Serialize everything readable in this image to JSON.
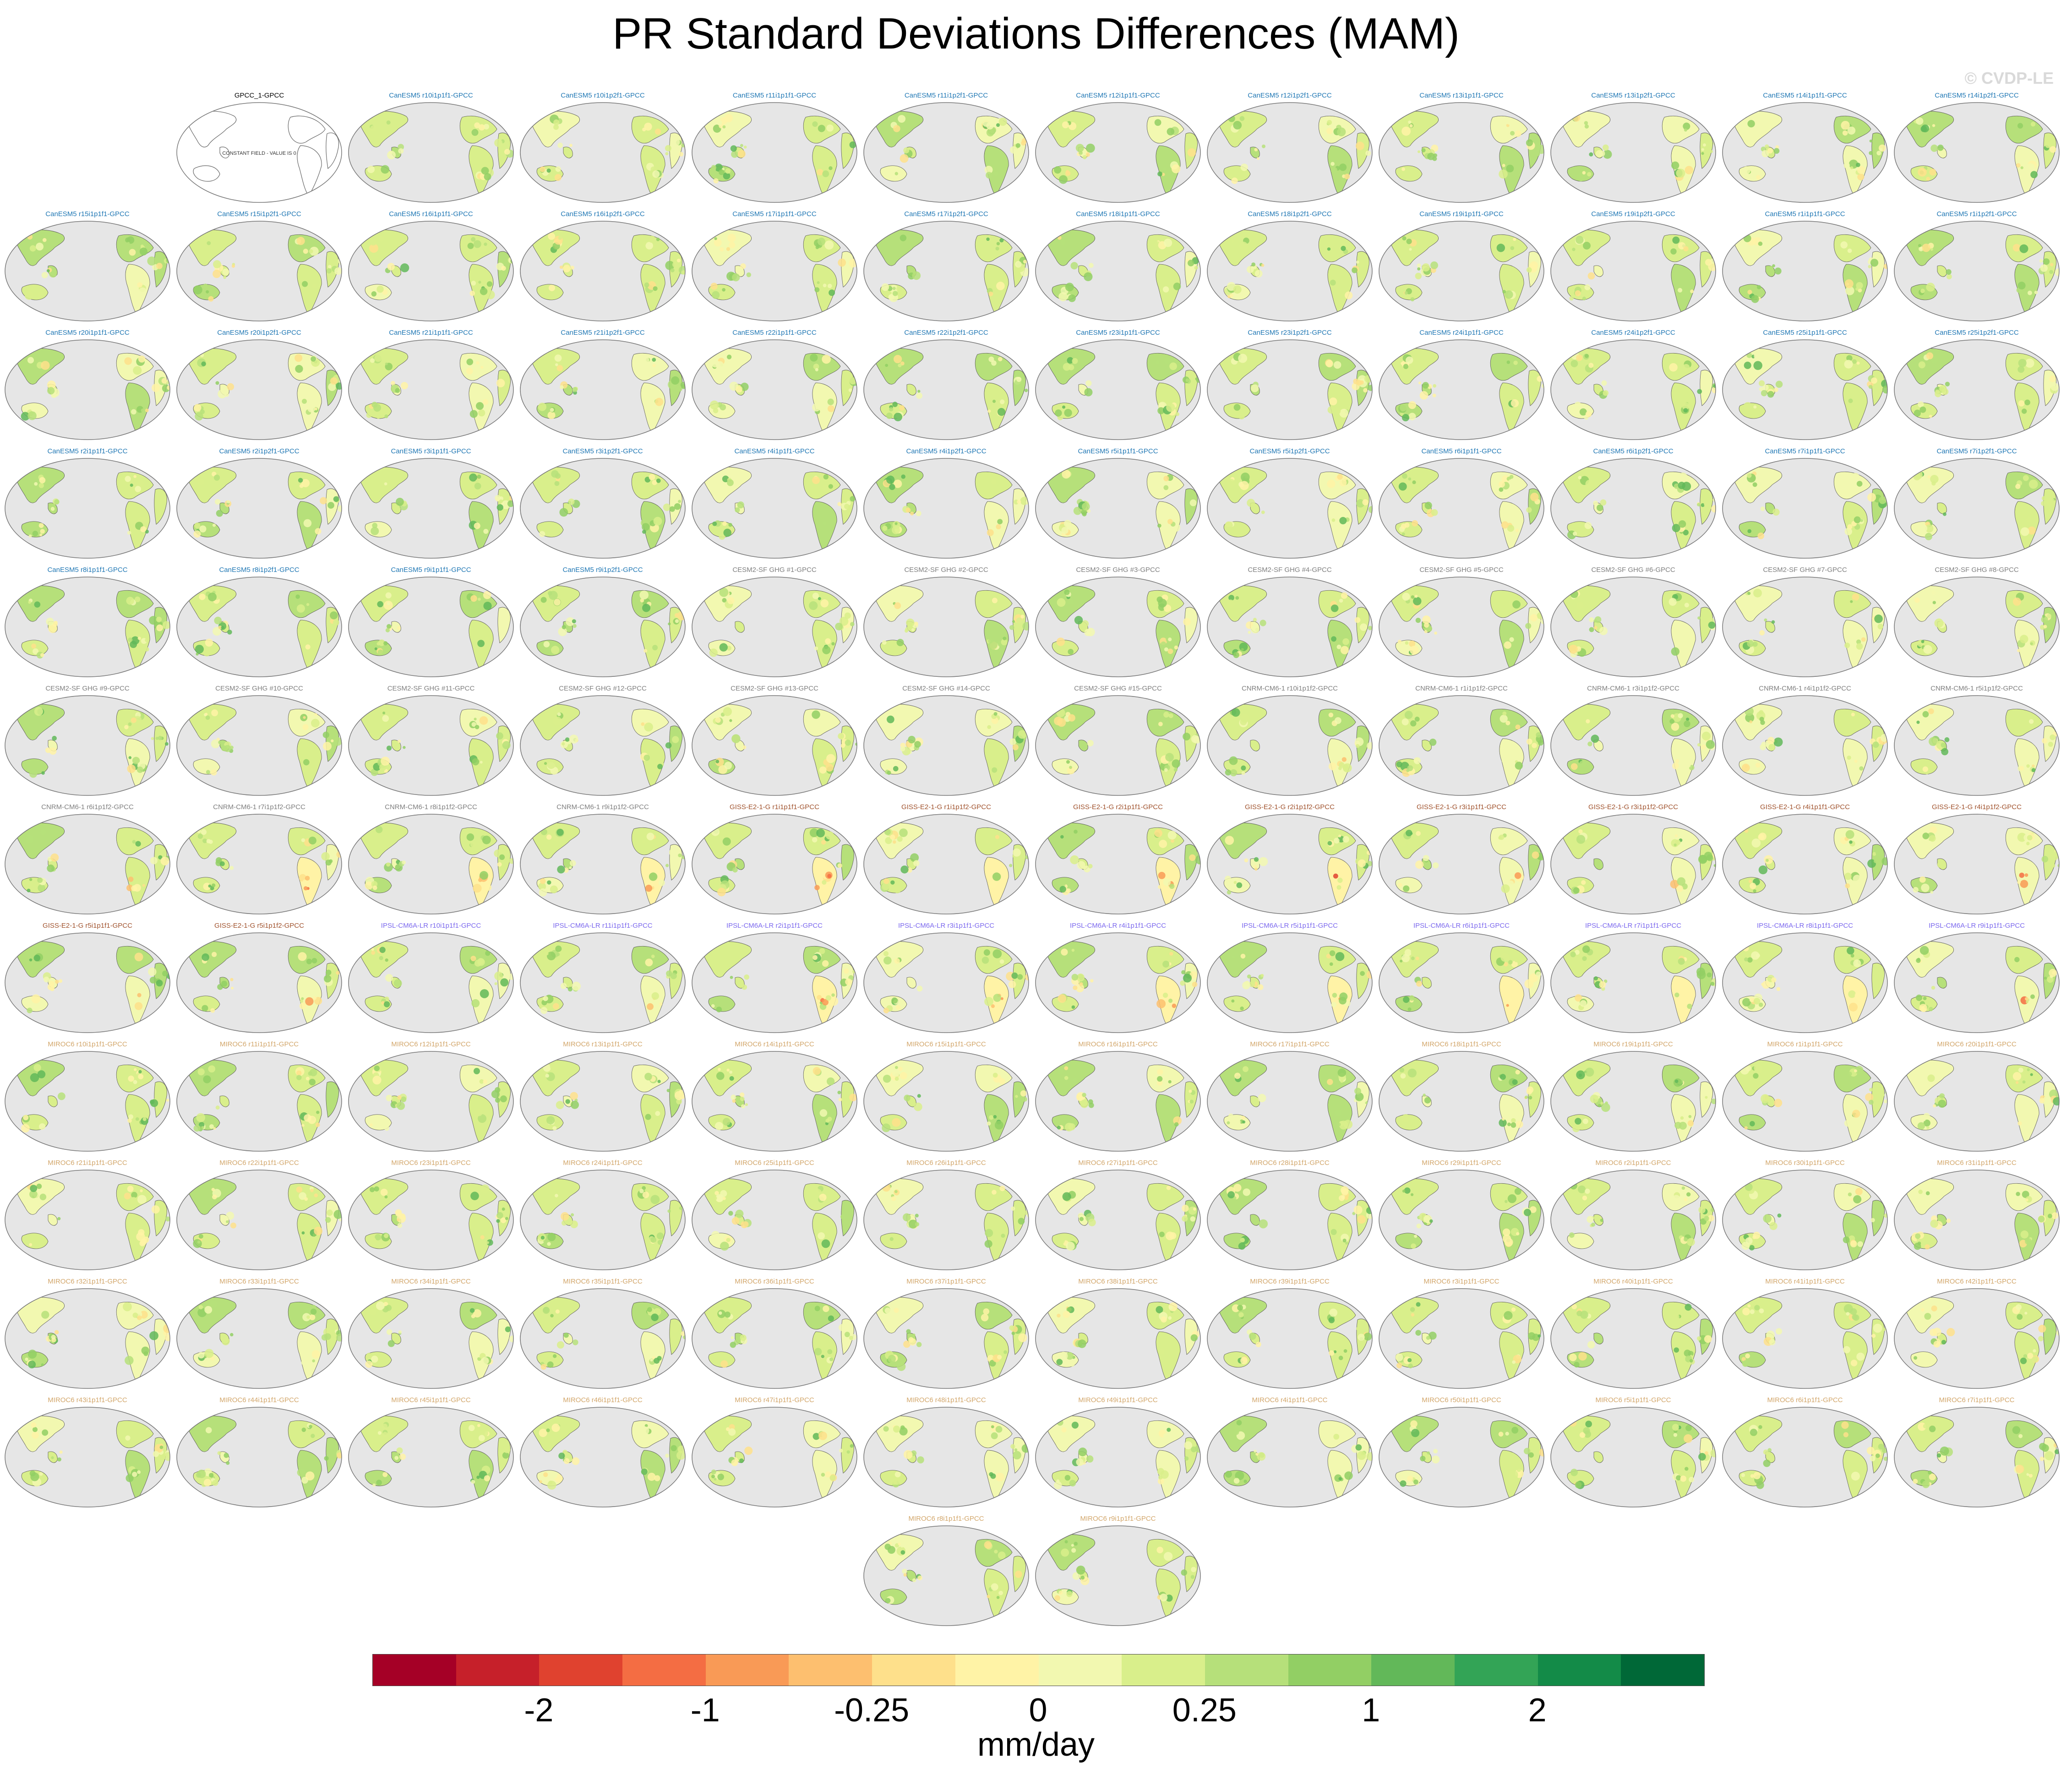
{
  "title": "PR Standard Deviations Differences (MAM)",
  "credit": "© CVDP-LE",
  "units": "mm/day",
  "colorbar": {
    "colors": [
      "#a50026",
      "#c6202a",
      "#e0422f",
      "#f46d43",
      "#f99a56",
      "#fdbf6f",
      "#fee08b",
      "#fff3a6",
      "#f2f8b0",
      "#d9ef8b",
      "#b6e07a",
      "#92cf64",
      "#62b859",
      "#33a456",
      "#138b48",
      "#006837"
    ],
    "ticks": [
      {
        "label": "-2",
        "edge": 2
      },
      {
        "label": "-1",
        "edge": 4
      },
      {
        "label": "-0.25",
        "edge": 6
      },
      {
        "label": "0",
        "edge": 8
      },
      {
        "label": "0.25",
        "edge": 10
      },
      {
        "label": "1",
        "edge": 12
      },
      {
        "label": "2",
        "edge": 14
      }
    ]
  },
  "model_colors": {
    "GPCC": "#000000",
    "CanESM5": "#1f77b4",
    "CESM2-SF GHG": "#7f7f7f",
    "CNRM-CM6-1": "#7f7f7f",
    "GISS-E2-1-G": "#a0522d",
    "IPSL-CM6A-LR": "#7b68ee",
    "MIROC6": "#d2a66a"
  },
  "panels": [
    {
      "label": "GPCC_1-GPCC",
      "model": "GPCC",
      "obs": true,
      "note": "CONSTANT FIELD - VALUE IS 0"
    },
    {
      "label": "CanESM5 r10i1p1f1-GPCC",
      "model": "CanESM5"
    },
    {
      "label": "CanESM5 r10i1p2f1-GPCC",
      "model": "CanESM5"
    },
    {
      "label": "CanESM5 r11i1p1f1-GPCC",
      "model": "CanESM5"
    },
    {
      "label": "CanESM5 r11i1p2f1-GPCC",
      "model": "CanESM5"
    },
    {
      "label": "CanESM5 r12i1p1f1-GPCC",
      "model": "CanESM5"
    },
    {
      "label": "CanESM5 r12i1p2f1-GPCC",
      "model": "CanESM5"
    },
    {
      "label": "CanESM5 r13i1p1f1-GPCC",
      "model": "CanESM5"
    },
    {
      "label": "CanESM5 r13i1p2f1-GPCC",
      "model": "CanESM5"
    },
    {
      "label": "CanESM5 r14i1p1f1-GPCC",
      "model": "CanESM5"
    },
    {
      "label": "CanESM5 r14i1p2f1-GPCC",
      "model": "CanESM5"
    },
    {
      "label": "CanESM5 r15i1p1f1-GPCC",
      "model": "CanESM5"
    },
    {
      "label": "CanESM5 r15i1p2f1-GPCC",
      "model": "CanESM5"
    },
    {
      "label": "CanESM5 r16i1p1f1-GPCC",
      "model": "CanESM5"
    },
    {
      "label": "CanESM5 r16i1p2f1-GPCC",
      "model": "CanESM5"
    },
    {
      "label": "CanESM5 r17i1p1f1-GPCC",
      "model": "CanESM5"
    },
    {
      "label": "CanESM5 r17i1p2f1-GPCC",
      "model": "CanESM5"
    },
    {
      "label": "CanESM5 r18i1p1f1-GPCC",
      "model": "CanESM5"
    },
    {
      "label": "CanESM5 r18i1p2f1-GPCC",
      "model": "CanESM5"
    },
    {
      "label": "CanESM5 r19i1p1f1-GPCC",
      "model": "CanESM5"
    },
    {
      "label": "CanESM5 r19i1p2f1-GPCC",
      "model": "CanESM5"
    },
    {
      "label": "CanESM5 r1i1p1f1-GPCC",
      "model": "CanESM5"
    },
    {
      "label": "CanESM5 r1i1p2f1-GPCC",
      "model": "CanESM5"
    },
    {
      "label": "CanESM5 r20i1p1f1-GPCC",
      "model": "CanESM5"
    },
    {
      "label": "CanESM5 r20i1p2f1-GPCC",
      "model": "CanESM5"
    },
    {
      "label": "CanESM5 r21i1p1f1-GPCC",
      "model": "CanESM5"
    },
    {
      "label": "CanESM5 r21i1p2f1-GPCC",
      "model": "CanESM5"
    },
    {
      "label": "CanESM5 r22i1p1f1-GPCC",
      "model": "CanESM5"
    },
    {
      "label": "CanESM5 r22i1p2f1-GPCC",
      "model": "CanESM5"
    },
    {
      "label": "CanESM5 r23i1p1f1-GPCC",
      "model": "CanESM5"
    },
    {
      "label": "CanESM5 r23i1p2f1-GPCC",
      "model": "CanESM5"
    },
    {
      "label": "CanESM5 r24i1p1f1-GPCC",
      "model": "CanESM5"
    },
    {
      "label": "CanESM5 r24i1p2f1-GPCC",
      "model": "CanESM5"
    },
    {
      "label": "CanESM5 r25i1p1f1-GPCC",
      "model": "CanESM5"
    },
    {
      "label": "CanESM5 r25i1p2f1-GPCC",
      "model": "CanESM5"
    },
    {
      "label": "CanESM5 r2i1p1f1-GPCC",
      "model": "CanESM5"
    },
    {
      "label": "CanESM5 r2i1p2f1-GPCC",
      "model": "CanESM5"
    },
    {
      "label": "CanESM5 r3i1p1f1-GPCC",
      "model": "CanESM5"
    },
    {
      "label": "CanESM5 r3i1p2f1-GPCC",
      "model": "CanESM5"
    },
    {
      "label": "CanESM5 r4i1p1f1-GPCC",
      "model": "CanESM5"
    },
    {
      "label": "CanESM5 r4i1p2f1-GPCC",
      "model": "CanESM5"
    },
    {
      "label": "CanESM5 r5i1p1f1-GPCC",
      "model": "CanESM5"
    },
    {
      "label": "CanESM5 r5i1p2f1-GPCC",
      "model": "CanESM5"
    },
    {
      "label": "CanESM5 r6i1p1f1-GPCC",
      "model": "CanESM5"
    },
    {
      "label": "CanESM5 r6i1p2f1-GPCC",
      "model": "CanESM5"
    },
    {
      "label": "CanESM5 r7i1p1f1-GPCC",
      "model": "CanESM5"
    },
    {
      "label": "CanESM5 r7i1p2f1-GPCC",
      "model": "CanESM5"
    },
    {
      "label": "CanESM5 r8i1p1f1-GPCC",
      "model": "CanESM5"
    },
    {
      "label": "CanESM5 r8i1p2f1-GPCC",
      "model": "CanESM5"
    },
    {
      "label": "CanESM5 r9i1p1f1-GPCC",
      "model": "CanESM5"
    },
    {
      "label": "CanESM5 r9i1p2f1-GPCC",
      "model": "CanESM5"
    },
    {
      "label": "CESM2-SF GHG #1-GPCC",
      "model": "CESM2-SF GHG"
    },
    {
      "label": "CESM2-SF GHG #2-GPCC",
      "model": "CESM2-SF GHG"
    },
    {
      "label": "CESM2-SF GHG #3-GPCC",
      "model": "CESM2-SF GHG"
    },
    {
      "label": "CESM2-SF GHG #4-GPCC",
      "model": "CESM2-SF GHG"
    },
    {
      "label": "CESM2-SF GHG #5-GPCC",
      "model": "CESM2-SF GHG"
    },
    {
      "label": "CESM2-SF GHG #6-GPCC",
      "model": "CESM2-SF GHG"
    },
    {
      "label": "CESM2-SF GHG #7-GPCC",
      "model": "CESM2-SF GHG"
    },
    {
      "label": "CESM2-SF GHG #8-GPCC",
      "model": "CESM2-SF GHG"
    },
    {
      "label": "CESM2-SF GHG #9-GPCC",
      "model": "CESM2-SF GHG"
    },
    {
      "label": "CESM2-SF GHG #10-GPCC",
      "model": "CESM2-SF GHG"
    },
    {
      "label": "CESM2-SF GHG #11-GPCC",
      "model": "CESM2-SF GHG"
    },
    {
      "label": "CESM2-SF GHG #12-GPCC",
      "model": "CESM2-SF GHG"
    },
    {
      "label": "CESM2-SF GHG #13-GPCC",
      "model": "CESM2-SF GHG"
    },
    {
      "label": "CESM2-SF GHG #14-GPCC",
      "model": "CESM2-SF GHG"
    },
    {
      "label": "CESM2-SF GHG #15-GPCC",
      "model": "CESM2-SF GHG"
    },
    {
      "label": "CNRM-CM6-1 r10i1p1f2-GPCC",
      "model": "CNRM-CM6-1"
    },
    {
      "label": "CNRM-CM6-1 r1i1p1f2-GPCC",
      "model": "CNRM-CM6-1"
    },
    {
      "label": "CNRM-CM6-1 r3i1p1f2-GPCC",
      "model": "CNRM-CM6-1"
    },
    {
      "label": "CNRM-CM6-1 r4i1p1f2-GPCC",
      "model": "CNRM-CM6-1"
    },
    {
      "label": "CNRM-CM6-1 r5i1p1f2-GPCC",
      "model": "CNRM-CM6-1"
    },
    {
      "label": "CNRM-CM6-1 r6i1p1f2-GPCC",
      "model": "CNRM-CM6-1"
    },
    {
      "label": "CNRM-CM6-1 r7i1p1f2-GPCC",
      "model": "CNRM-CM6-1"
    },
    {
      "label": "CNRM-CM6-1 r8i1p1f2-GPCC",
      "model": "CNRM-CM6-1"
    },
    {
      "label": "CNRM-CM6-1 r9i1p1f2-GPCC",
      "model": "CNRM-CM6-1"
    },
    {
      "label": "GISS-E2-1-G r1i1p1f1-GPCC",
      "model": "GISS-E2-1-G"
    },
    {
      "label": "GISS-E2-1-G r1i1p1f2-GPCC",
      "model": "GISS-E2-1-G"
    },
    {
      "label": "GISS-E2-1-G r2i1p1f1-GPCC",
      "model": "GISS-E2-1-G"
    },
    {
      "label": "GISS-E2-1-G r2i1p1f2-GPCC",
      "model": "GISS-E2-1-G"
    },
    {
      "label": "GISS-E2-1-G r3i1p1f1-GPCC",
      "model": "GISS-E2-1-G"
    },
    {
      "label": "GISS-E2-1-G r3i1p1f2-GPCC",
      "model": "GISS-E2-1-G"
    },
    {
      "label": "GISS-E2-1-G r4i1p1f1-GPCC",
      "model": "GISS-E2-1-G"
    },
    {
      "label": "GISS-E2-1-G r4i1p1f2-GPCC",
      "model": "GISS-E2-1-G"
    },
    {
      "label": "GISS-E2-1-G r5i1p1f1-GPCC",
      "model": "GISS-E2-1-G"
    },
    {
      "label": "GISS-E2-1-G r5i1p1f2-GPCC",
      "model": "GISS-E2-1-G"
    },
    {
      "label": "IPSL-CM6A-LR r10i1p1f1-GPCC",
      "model": "IPSL-CM6A-LR"
    },
    {
      "label": "IPSL-CM6A-LR r11i1p1f1-GPCC",
      "model": "IPSL-CM6A-LR"
    },
    {
      "label": "IPSL-CM6A-LR r2i1p1f1-GPCC",
      "model": "IPSL-CM6A-LR"
    },
    {
      "label": "IPSL-CM6A-LR r3i1p1f1-GPCC",
      "model": "IPSL-CM6A-LR"
    },
    {
      "label": "IPSL-CM6A-LR r4i1p1f1-GPCC",
      "model": "IPSL-CM6A-LR"
    },
    {
      "label": "IPSL-CM6A-LR r5i1p1f1-GPCC",
      "model": "IPSL-CM6A-LR"
    },
    {
      "label": "IPSL-CM6A-LR r6i1p1f1-GPCC",
      "model": "IPSL-CM6A-LR"
    },
    {
      "label": "IPSL-CM6A-LR r7i1p1f1-GPCC",
      "model": "IPSL-CM6A-LR"
    },
    {
      "label": "IPSL-CM6A-LR r8i1p1f1-GPCC",
      "model": "IPSL-CM6A-LR"
    },
    {
      "label": "IPSL-CM6A-LR r9i1p1f1-GPCC",
      "model": "IPSL-CM6A-LR"
    },
    {
      "label": "MIROC6 r10i1p1f1-GPCC",
      "model": "MIROC6"
    },
    {
      "label": "MIROC6 r11i1p1f1-GPCC",
      "model": "MIROC6"
    },
    {
      "label": "MIROC6 r12i1p1f1-GPCC",
      "model": "MIROC6"
    },
    {
      "label": "MIROC6 r13i1p1f1-GPCC",
      "model": "MIROC6"
    },
    {
      "label": "MIROC6 r14i1p1f1-GPCC",
      "model": "MIROC6"
    },
    {
      "label": "MIROC6 r15i1p1f1-GPCC",
      "model": "MIROC6"
    },
    {
      "label": "MIROC6 r16i1p1f1-GPCC",
      "model": "MIROC6"
    },
    {
      "label": "MIROC6 r17i1p1f1-GPCC",
      "model": "MIROC6"
    },
    {
      "label": "MIROC6 r18i1p1f1-GPCC",
      "model": "MIROC6"
    },
    {
      "label": "MIROC6 r19i1p1f1-GPCC",
      "model": "MIROC6"
    },
    {
      "label": "MIROC6 r1i1p1f1-GPCC",
      "model": "MIROC6"
    },
    {
      "label": "MIROC6 r20i1p1f1-GPCC",
      "model": "MIROC6"
    },
    {
      "label": "MIROC6 r21i1p1f1-GPCC",
      "model": "MIROC6"
    },
    {
      "label": "MIROC6 r22i1p1f1-GPCC",
      "model": "MIROC6"
    },
    {
      "label": "MIROC6 r23i1p1f1-GPCC",
      "model": "MIROC6"
    },
    {
      "label": "MIROC6 r24i1p1f1-GPCC",
      "model": "MIROC6"
    },
    {
      "label": "MIROC6 r25i1p1f1-GPCC",
      "model": "MIROC6"
    },
    {
      "label": "MIROC6 r26i1p1f1-GPCC",
      "model": "MIROC6"
    },
    {
      "label": "MIROC6 r27i1p1f1-GPCC",
      "model": "MIROC6"
    },
    {
      "label": "MIROC6 r28i1p1f1-GPCC",
      "model": "MIROC6"
    },
    {
      "label": "MIROC6 r29i1p1f1-GPCC",
      "model": "MIROC6"
    },
    {
      "label": "MIROC6 r2i1p1f1-GPCC",
      "model": "MIROC6"
    },
    {
      "label": "MIROC6 r30i1p1f1-GPCC",
      "model": "MIROC6"
    },
    {
      "label": "MIROC6 r31i1p1f1-GPCC",
      "model": "MIROC6"
    },
    {
      "label": "MIROC6 r32i1p1f1-GPCC",
      "model": "MIROC6"
    },
    {
      "label": "MIROC6 r33i1p1f1-GPCC",
      "model": "MIROC6"
    },
    {
      "label": "MIROC6 r34i1p1f1-GPCC",
      "model": "MIROC6"
    },
    {
      "label": "MIROC6 r35i1p1f1-GPCC",
      "model": "MIROC6"
    },
    {
      "label": "MIROC6 r36i1p1f1-GPCC",
      "model": "MIROC6"
    },
    {
      "label": "MIROC6 r37i1p1f1-GPCC",
      "model": "MIROC6"
    },
    {
      "label": "MIROC6 r38i1p1f1-GPCC",
      "model": "MIROC6"
    },
    {
      "label": "MIROC6 r39i1p1f1-GPCC",
      "model": "MIROC6"
    },
    {
      "label": "MIROC6 r3i1p1f1-GPCC",
      "model": "MIROC6"
    },
    {
      "label": "MIROC6 r40i1p1f1-GPCC",
      "model": "MIROC6"
    },
    {
      "label": "MIROC6 r41i1p1f1-GPCC",
      "model": "MIROC6"
    },
    {
      "label": "MIROC6 r42i1p1f1-GPCC",
      "model": "MIROC6"
    },
    {
      "label": "MIROC6 r43i1p1f1-GPCC",
      "model": "MIROC6"
    },
    {
      "label": "MIROC6 r44i1p1f1-GPCC",
      "model": "MIROC6"
    },
    {
      "label": "MIROC6 r45i1p1f1-GPCC",
      "model": "MIROC6"
    },
    {
      "label": "MIROC6 r46i1p1f1-GPCC",
      "model": "MIROC6"
    },
    {
      "label": "MIROC6 r47i1p1f1-GPCC",
      "model": "MIROC6"
    },
    {
      "label": "MIROC6 r48i1p1f1-GPCC",
      "model": "MIROC6"
    },
    {
      "label": "MIROC6 r49i1p1f1-GPCC",
      "model": "MIROC6"
    },
    {
      "label": "MIROC6 r4i1p1f1-GPCC",
      "model": "MIROC6"
    },
    {
      "label": "MIROC6 r50i1p1f1-GPCC",
      "model": "MIROC6"
    },
    {
      "label": "MIROC6 r5i1p1f1-GPCC",
      "model": "MIROC6"
    },
    {
      "label": "MIROC6 r6i1p1f1-GPCC",
      "model": "MIROC6"
    },
    {
      "label": "MIROC6 r7i1p1f1-GPCC",
      "model": "MIROC6"
    },
    {
      "label": "MIROC6 r8i1p1f1-GPCC",
      "model": "MIROC6"
    },
    {
      "label": "MIROC6 r9i1p1f1-GPCC",
      "model": "MIROC6"
    }
  ]
}
